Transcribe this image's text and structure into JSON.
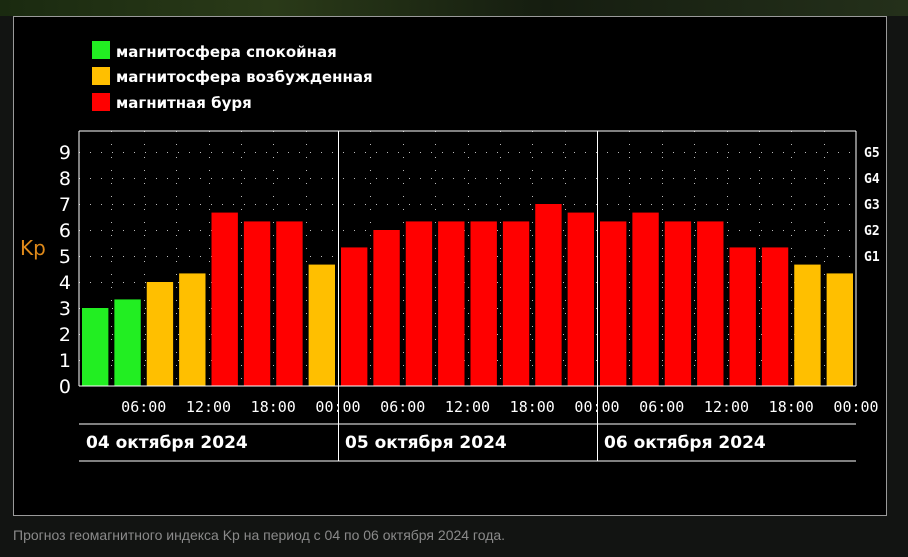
{
  "chart_data": {
    "type": "bar",
    "title": "",
    "ylabel": "Kp",
    "ylim": [
      0,
      9
    ],
    "yticks": [
      "0",
      "1",
      "2",
      "3",
      "4",
      "5",
      "6",
      "7",
      "8",
      "9"
    ],
    "g_scale": [
      "G1",
      "G2",
      "G3",
      "G4",
      "G5"
    ],
    "xtick_labels": [
      "06:00",
      "12:00",
      "18:00",
      "00:00",
      "06:00",
      "12:00",
      "18:00",
      "00:00",
      "06:00",
      "12:00",
      "18:00",
      "00:00"
    ],
    "days": [
      "04 октября 2024",
      "05 октября 2024",
      "06 октября 2024"
    ],
    "values": [
      3.0,
      3.33,
      4.0,
      4.33,
      6.67,
      6.33,
      6.33,
      4.67,
      5.33,
      6.0,
      6.33,
      6.33,
      6.33,
      6.33,
      7.0,
      6.67,
      6.33,
      6.67,
      6.33,
      6.33,
      5.33,
      5.33,
      4.67,
      4.33
    ],
    "legend": [
      {
        "label": "магнитосфера спокойная",
        "color": "#22ee22"
      },
      {
        "label": "магнитосфера возбужденная",
        "color": "#ffbf00"
      },
      {
        "label": "магнитная буря",
        "color": "#ff0000"
      }
    ],
    "grid": true
  },
  "caption": "Прогноз геомагнитного индекса Kp на период с 04 по 06 октября 2024 года."
}
